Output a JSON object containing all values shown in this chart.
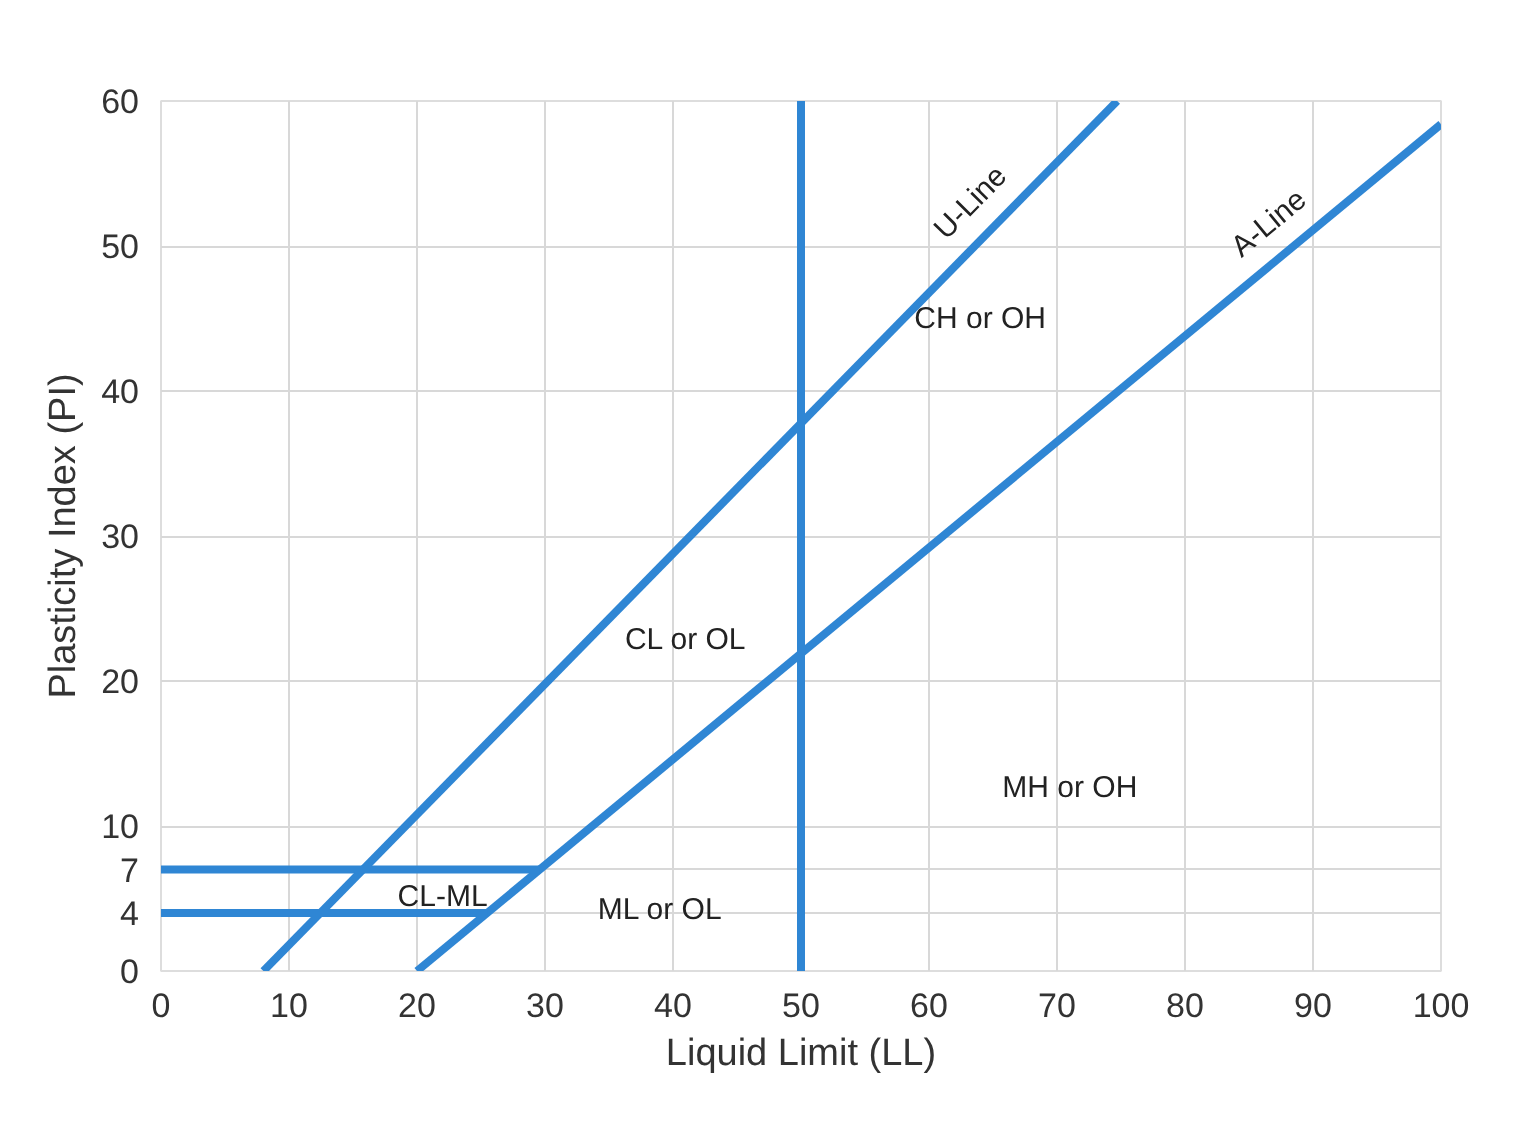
{
  "chart_data": {
    "type": "line",
    "xlabel": "Liquid Limit (LL)",
    "ylabel": "Plasticity Index (PI)",
    "xlim": [
      0,
      100
    ],
    "ylim": [
      0,
      60
    ],
    "xticks": [
      0,
      10,
      20,
      30,
      40,
      50,
      60,
      70,
      80,
      90,
      100
    ],
    "yticks": [
      0,
      4,
      7,
      10,
      20,
      30,
      40,
      50,
      60
    ],
    "grid": true,
    "line_style": "solid",
    "marker": "none",
    "series": [
      {
        "name": "U-Line",
        "color": "#2f86d4",
        "x": [
          8,
          74.7
        ],
        "values": [
          0,
          60
        ]
      },
      {
        "name": "A-Line",
        "color": "#2f86d4",
        "x": [
          20,
          100
        ],
        "values": [
          0,
          58.4
        ]
      },
      {
        "color": "#2f86d4",
        "x": [
          50,
          50
        ],
        "values": [
          0,
          60
        ]
      },
      {
        "color": "#2f86d4",
        "x": [
          0,
          29.6
        ],
        "values": [
          7,
          7
        ]
      },
      {
        "color": "#2f86d4",
        "x": [
          0,
          25.5
        ],
        "values": [
          4,
          4
        ]
      }
    ],
    "annotations": [
      "CH or OH",
      "CL or OL",
      "MH or OH",
      "ML or OL",
      "CL-ML"
    ]
  }
}
